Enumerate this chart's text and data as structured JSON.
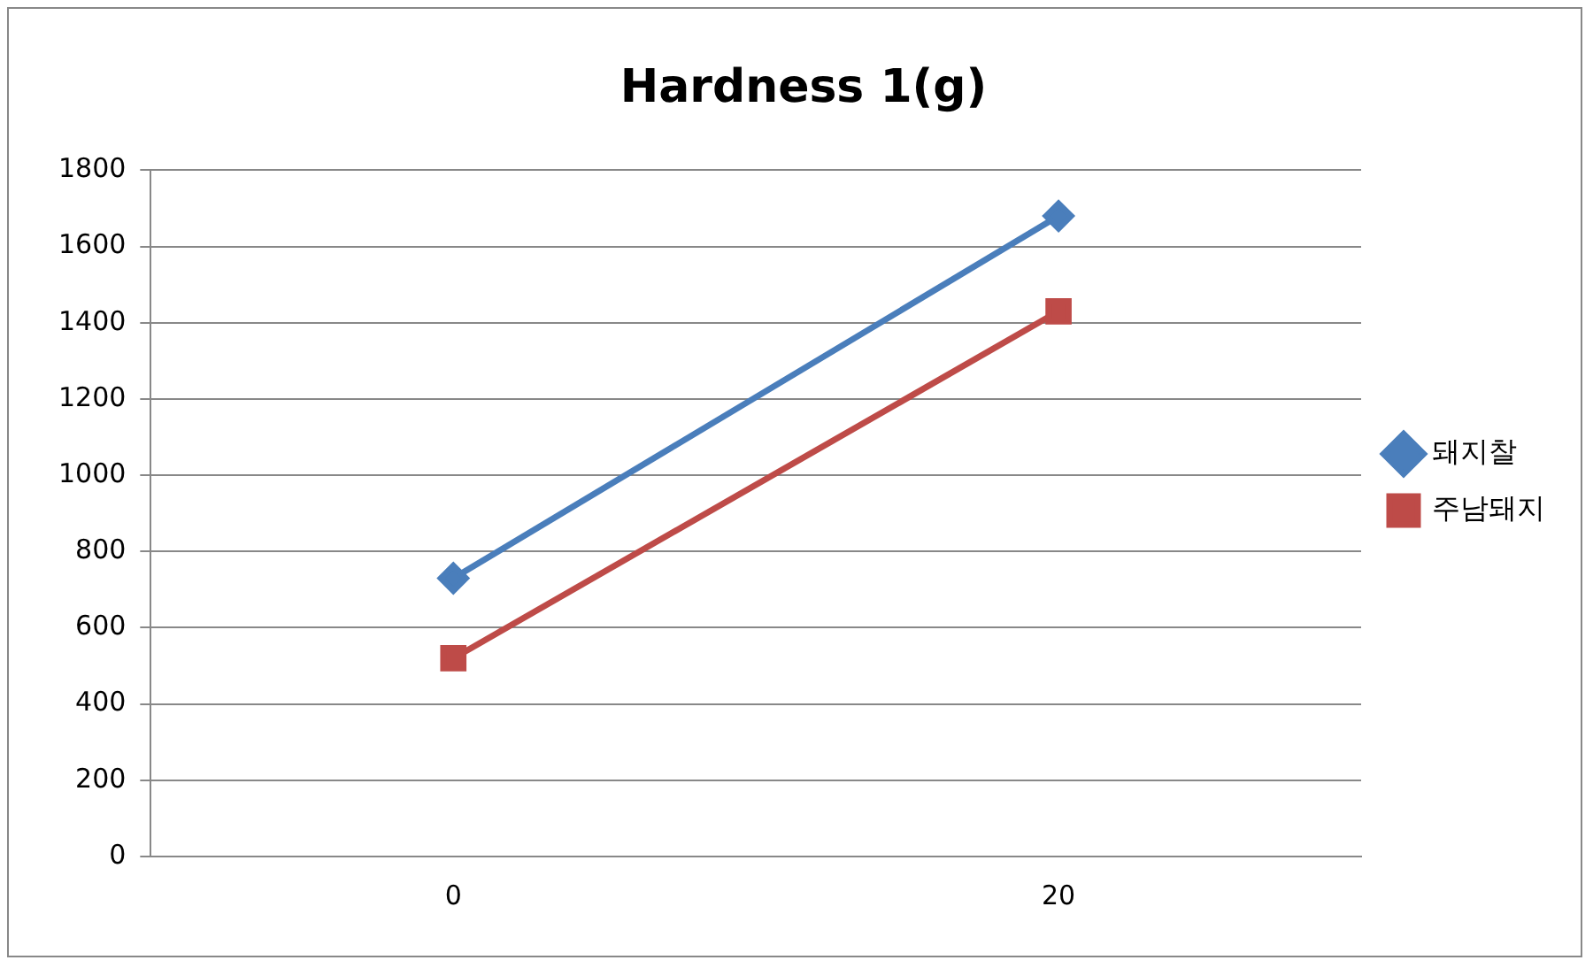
{
  "chart_data": {
    "type": "line",
    "title": "Hardness 1(g)",
    "categories": [
      "0",
      "20"
    ],
    "series": [
      {
        "name": "돼지찰",
        "color": "#4a7ebb",
        "values": [
          730,
          1680
        ],
        "marker": "diamond"
      },
      {
        "name": "주남돼지",
        "color": "#be4b48",
        "values": [
          520,
          1430
        ],
        "marker": "square"
      }
    ],
    "ylim": [
      0,
      1800
    ],
    "yticks": [
      0,
      200,
      400,
      600,
      800,
      1000,
      1200,
      1400,
      1600,
      1800
    ],
    "grid": "y",
    "legend": "right",
    "line_style": "solid"
  }
}
